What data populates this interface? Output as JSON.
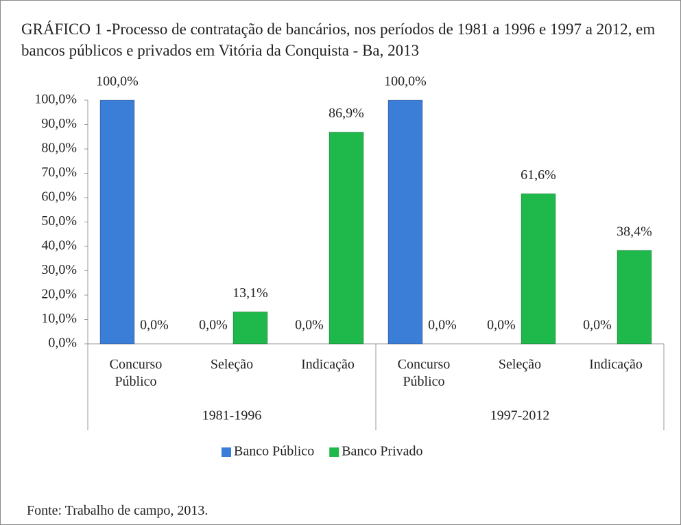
{
  "chart_data": {
    "type": "bar",
    "title": "GRÁFICO 1 -Processo de contratação de bancários, nos períodos de 1981 a 1996 e 1997 a 2012, em bancos públicos e privados em Vitória da Conquista - Ba, 2013",
    "categories": [
      "Concurso Público",
      "Seleção",
      "Indicação",
      "Concurso Público",
      "Seleção",
      "Indicação"
    ],
    "groups": [
      "1981-1996",
      "1997-2012"
    ],
    "series": [
      {
        "name": "Banco Público",
        "color": "#3b7ed8",
        "values": [
          100,
          0,
          0,
          100,
          0,
          0
        ],
        "value_labels": [
          "100,0%",
          "0,0%",
          "0,0%",
          "100,0%",
          "0,0%",
          "0,0%"
        ]
      },
      {
        "name": "Banco Privado",
        "color": "#1fb84b",
        "values": [
          0,
          13.1,
          86.9,
          0,
          61.6,
          38.4
        ],
        "value_labels": [
          "0,0%",
          "13,1%",
          "86,9%",
          "0,0%",
          "61,6%",
          "38,4%"
        ]
      }
    ],
    "ylim": [
      0,
      100
    ],
    "yticks": [
      {
        "value": 0,
        "label": "0,0%"
      },
      {
        "value": 10,
        "label": "10,0%"
      },
      {
        "value": 20,
        "label": "20,0%"
      },
      {
        "value": 30,
        "label": "30,0%"
      },
      {
        "value": 40,
        "label": "40,0%"
      },
      {
        "value": 50,
        "label": "50,0%"
      },
      {
        "value": 60,
        "label": "60,0%"
      },
      {
        "value": 70,
        "label": "70,0%"
      },
      {
        "value": 80,
        "label": "80,0%"
      },
      {
        "value": 90,
        "label": "90,0%"
      },
      {
        "value": 100,
        "label": "100,0%"
      }
    ],
    "legend": "bottom",
    "source": "Fonte: Trabalho de campo, 2013."
  }
}
